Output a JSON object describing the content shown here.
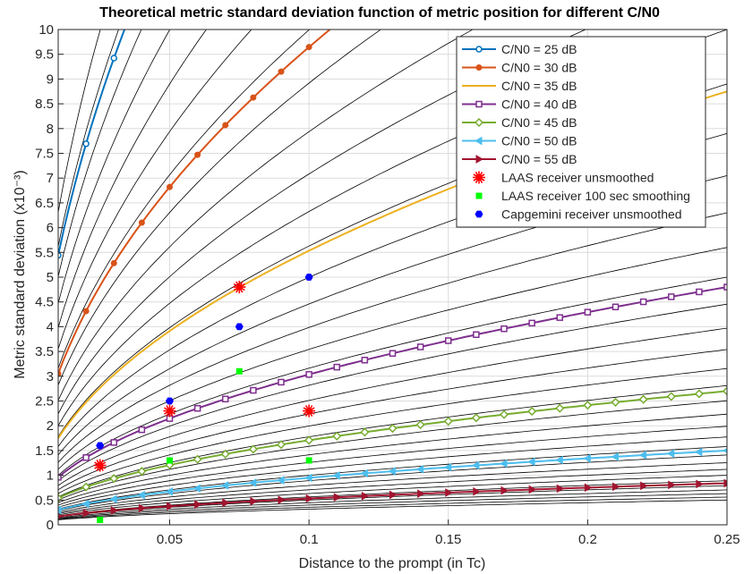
{
  "chart_data": {
    "type": "line",
    "title": "Theoretical metric standard deviation function of metric position for different C/N0",
    "xlabel": "Distance to the prompt (in Tc)",
    "ylabel": "Metric standard deviation (x10⁻³)",
    "xlim": [
      0.01,
      0.25
    ],
    "ylim": [
      0,
      10
    ],
    "xticks": [
      0.05,
      0.1,
      0.15,
      0.2,
      0.25
    ],
    "xtick_labels": [
      "0.05",
      "0.1",
      "0.15",
      "0.2",
      "0.25"
    ],
    "yticks": [
      0,
      0.5,
      1,
      1.5,
      2,
      2.5,
      3,
      3.5,
      4,
      4.5,
      5,
      5.5,
      6,
      6.5,
      7,
      7.5,
      8,
      8.5,
      9,
      9.5,
      10
    ],
    "ytick_labels": [
      "0",
      "0.5",
      "1",
      "1.5",
      "2",
      "2.5",
      "3",
      "3.5",
      "4",
      "4.5",
      "5",
      "5.5",
      "6",
      "6.5",
      "7",
      "7.5",
      "8",
      "8.5",
      "9",
      "9.5",
      "10"
    ],
    "grid": true,
    "legend_position": "top-right",
    "background_curve_color": "#000000",
    "background_curves_scale": [
      1.0,
      1.12,
      1.26,
      1.41,
      1.58,
      1.78,
      2.0,
      2.24,
      2.51,
      2.82,
      3.16,
      3.55,
      3.98,
      4.47,
      5.01,
      5.62,
      6.31,
      7.08,
      7.94,
      8.91,
      10.0,
      11.2,
      12.6,
      14.1,
      15.8,
      17.8,
      20.0,
      22.4,
      25.1,
      28.2,
      31.6,
      35.5,
      39.8,
      44.7,
      50.1,
      56.2,
      63.1
    ],
    "series": [
      {
        "name": "C/N0 = 25 dB",
        "color": "#0072BD",
        "marker": "circle",
        "coef": 54.4,
        "x": [
          0.01,
          0.02,
          0.03
        ]
      },
      {
        "name": "C/N0 = 30 dB",
        "color": "#D95319",
        "marker": "dot",
        "coef": 30.5,
        "x": [
          0.01,
          0.02,
          0.03,
          0.04,
          0.05,
          0.06,
          0.07,
          0.08,
          0.09,
          0.1
        ]
      },
      {
        "name": "C/N0 = 35 dB",
        "color": "#EDB120",
        "marker": "none",
        "coef": 17.5,
        "x": [
          0.01,
          0.02,
          0.03,
          0.04,
          0.05,
          0.06,
          0.07,
          0.08,
          0.09,
          0.1,
          0.11,
          0.12,
          0.13,
          0.14,
          0.15,
          0.16,
          0.17,
          0.18,
          0.19,
          0.2,
          0.21,
          0.22,
          0.23,
          0.24,
          0.25
        ]
      },
      {
        "name": "C/N0 = 40 dB",
        "color": "#7E2F8E",
        "marker": "square",
        "coef": 9.6,
        "x": [
          0.01,
          0.02,
          0.03,
          0.04,
          0.05,
          0.06,
          0.07,
          0.08,
          0.09,
          0.1,
          0.11,
          0.12,
          0.13,
          0.14,
          0.15,
          0.16,
          0.17,
          0.18,
          0.19,
          0.2,
          0.21,
          0.22,
          0.23,
          0.24,
          0.25
        ]
      },
      {
        "name": "C/N0 = 45 dB",
        "color": "#77AC30",
        "marker": "diamond",
        "coef": 5.4,
        "x": [
          0.01,
          0.02,
          0.03,
          0.04,
          0.05,
          0.06,
          0.07,
          0.08,
          0.09,
          0.1,
          0.11,
          0.12,
          0.13,
          0.14,
          0.15,
          0.16,
          0.17,
          0.18,
          0.19,
          0.2,
          0.21,
          0.22,
          0.23,
          0.24,
          0.25
        ]
      },
      {
        "name": "C/N0 = 50 dB",
        "color": "#4DBEEE",
        "marker": "triangle-left",
        "coef": 3.0,
        "x": [
          0.01,
          0.02,
          0.03,
          0.04,
          0.05,
          0.06,
          0.07,
          0.08,
          0.09,
          0.1,
          0.11,
          0.12,
          0.13,
          0.14,
          0.15,
          0.16,
          0.17,
          0.18,
          0.19,
          0.2,
          0.21,
          0.22,
          0.23,
          0.24,
          0.25
        ]
      },
      {
        "name": "C/N0 = 55 dB",
        "color": "#A2142F",
        "marker": "triangle-right",
        "coef": 1.68,
        "x": [
          0.01,
          0.02,
          0.03,
          0.04,
          0.05,
          0.06,
          0.07,
          0.08,
          0.09,
          0.1,
          0.11,
          0.12,
          0.13,
          0.14,
          0.15,
          0.16,
          0.17,
          0.18,
          0.19,
          0.2,
          0.21,
          0.22,
          0.23,
          0.24,
          0.25
        ]
      }
    ],
    "measurements": [
      {
        "name": "LAAS receiver unsmoothed",
        "color": "#FF0000",
        "marker": "star",
        "points": [
          [
            0.025,
            1.2
          ],
          [
            0.05,
            2.3
          ],
          [
            0.075,
            4.8
          ],
          [
            0.1,
            2.3
          ]
        ]
      },
      {
        "name": "LAAS receiver 100 sec smoothing",
        "color": "#00FF00",
        "marker": "filled-square",
        "points": [
          [
            0.025,
            0.1
          ],
          [
            0.05,
            1.3
          ],
          [
            0.075,
            3.1
          ],
          [
            0.1,
            1.3
          ]
        ]
      },
      {
        "name": "Capgemini receiver unsmoothed",
        "color": "#0000FF",
        "marker": "filled-hexagon",
        "points": [
          [
            0.025,
            1.6
          ],
          [
            0.05,
            2.5
          ],
          [
            0.075,
            4.0
          ],
          [
            0.1,
            5.0
          ]
        ]
      }
    ]
  }
}
